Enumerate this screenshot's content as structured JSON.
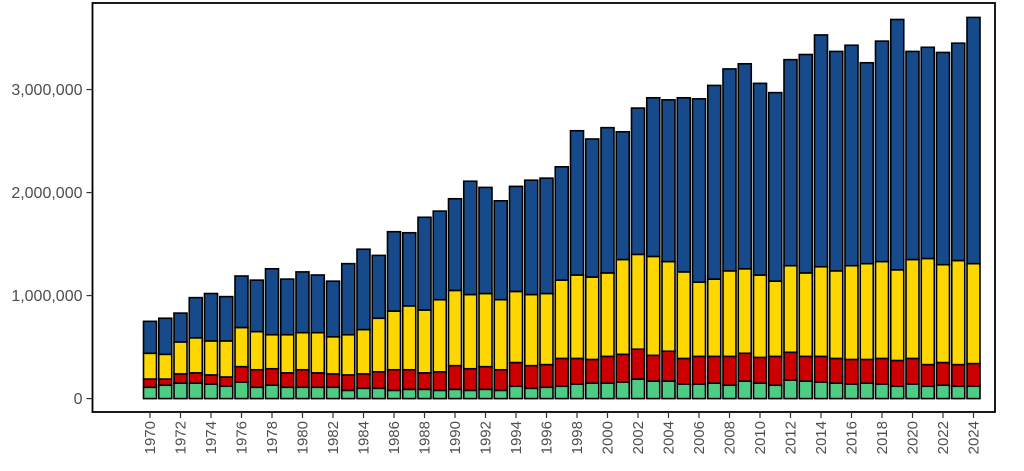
{
  "chart_data": {
    "type": "bar",
    "stacked": true,
    "title": "",
    "xlabel": "",
    "ylabel": "",
    "ylim": [
      -130000,
      3840000
    ],
    "yticks": [
      0,
      1000000,
      2000000,
      3000000
    ],
    "ytick_labels": [
      "0",
      "1,000,000",
      "2,000,000",
      "3,000,000"
    ],
    "legend": "none",
    "grid": false,
    "categories": [
      1970,
      1971,
      1972,
      1973,
      1974,
      1975,
      1976,
      1977,
      1978,
      1979,
      1980,
      1981,
      1982,
      1983,
      1984,
      1985,
      1986,
      1987,
      1988,
      1989,
      1990,
      1991,
      1992,
      1993,
      1994,
      1995,
      1996,
      1997,
      1998,
      1999,
      2000,
      2001,
      2002,
      2003,
      2004,
      2005,
      2006,
      2007,
      2008,
      2009,
      2010,
      2011,
      2012,
      2013,
      2014,
      2015,
      2016,
      2017,
      2018,
      2019,
      2020,
      2021,
      2022,
      2023,
      2024
    ],
    "xtick_labels": [
      "1970",
      "1972",
      "1974",
      "1976",
      "1978",
      "1980",
      "1982",
      "1984",
      "1986",
      "1988",
      "1990",
      "1992",
      "1994",
      "1996",
      "1998",
      "2000",
      "2002",
      "2004",
      "2006",
      "2008",
      "2010",
      "2012",
      "2014",
      "2016",
      "2018",
      "2020",
      "2022",
      "2024"
    ],
    "series": [
      {
        "color": "#4dcc84",
        "values": [
          110000,
          130000,
          150000,
          150000,
          140000,
          120000,
          160000,
          110000,
          130000,
          110000,
          110000,
          110000,
          110000,
          80000,
          100000,
          100000,
          80000,
          90000,
          90000,
          80000,
          90000,
          80000,
          90000,
          80000,
          120000,
          100000,
          110000,
          120000,
          140000,
          150000,
          150000,
          160000,
          190000,
          170000,
          170000,
          140000,
          140000,
          150000,
          130000,
          170000,
          150000,
          130000,
          180000,
          170000,
          160000,
          150000,
          140000,
          150000,
          140000,
          120000,
          140000,
          120000,
          130000,
          120000,
          120000
        ]
      },
      {
        "color": "#cc0000",
        "values": [
          80000,
          60000,
          90000,
          100000,
          90000,
          90000,
          150000,
          170000,
          160000,
          140000,
          170000,
          140000,
          130000,
          150000,
          140000,
          160000,
          200000,
          190000,
          160000,
          180000,
          230000,
          210000,
          220000,
          200000,
          230000,
          220000,
          220000,
          270000,
          250000,
          230000,
          260000,
          270000,
          290000,
          250000,
          290000,
          250000,
          270000,
          260000,
          280000,
          270000,
          250000,
          280000,
          270000,
          240000,
          250000,
          240000,
          240000,
          230000,
          250000,
          250000,
          250000,
          210000,
          220000,
          210000,
          220000
        ]
      },
      {
        "color": "#ffd700",
        "values": [
          250000,
          240000,
          310000,
          340000,
          330000,
          350000,
          380000,
          370000,
          330000,
          370000,
          360000,
          390000,
          360000,
          390000,
          430000,
          520000,
          570000,
          620000,
          610000,
          700000,
          730000,
          720000,
          710000,
          680000,
          690000,
          690000,
          690000,
          760000,
          810000,
          800000,
          810000,
          920000,
          920000,
          960000,
          870000,
          840000,
          720000,
          750000,
          830000,
          820000,
          800000,
          730000,
          840000,
          810000,
          870000,
          850000,
          910000,
          930000,
          940000,
          880000,
          960000,
          1030000,
          950000,
          1010000,
          970000
        ]
      },
      {
        "color": "#174a8a",
        "values": [
          310000,
          350000,
          280000,
          390000,
          460000,
          430000,
          500000,
          500000,
          640000,
          540000,
          590000,
          560000,
          540000,
          690000,
          780000,
          610000,
          770000,
          710000,
          900000,
          860000,
          890000,
          1100000,
          1030000,
          960000,
          1020000,
          1110000,
          1120000,
          1100000,
          1400000,
          1340000,
          1410000,
          1240000,
          1420000,
          1540000,
          1570000,
          1690000,
          1780000,
          1880000,
          1960000,
          1990000,
          1860000,
          1830000,
          2000000,
          2120000,
          2250000,
          2130000,
          2140000,
          1950000,
          2140000,
          2430000,
          2020000,
          2050000,
          2060000,
          2110000,
          2390000
        ]
      }
    ]
  }
}
